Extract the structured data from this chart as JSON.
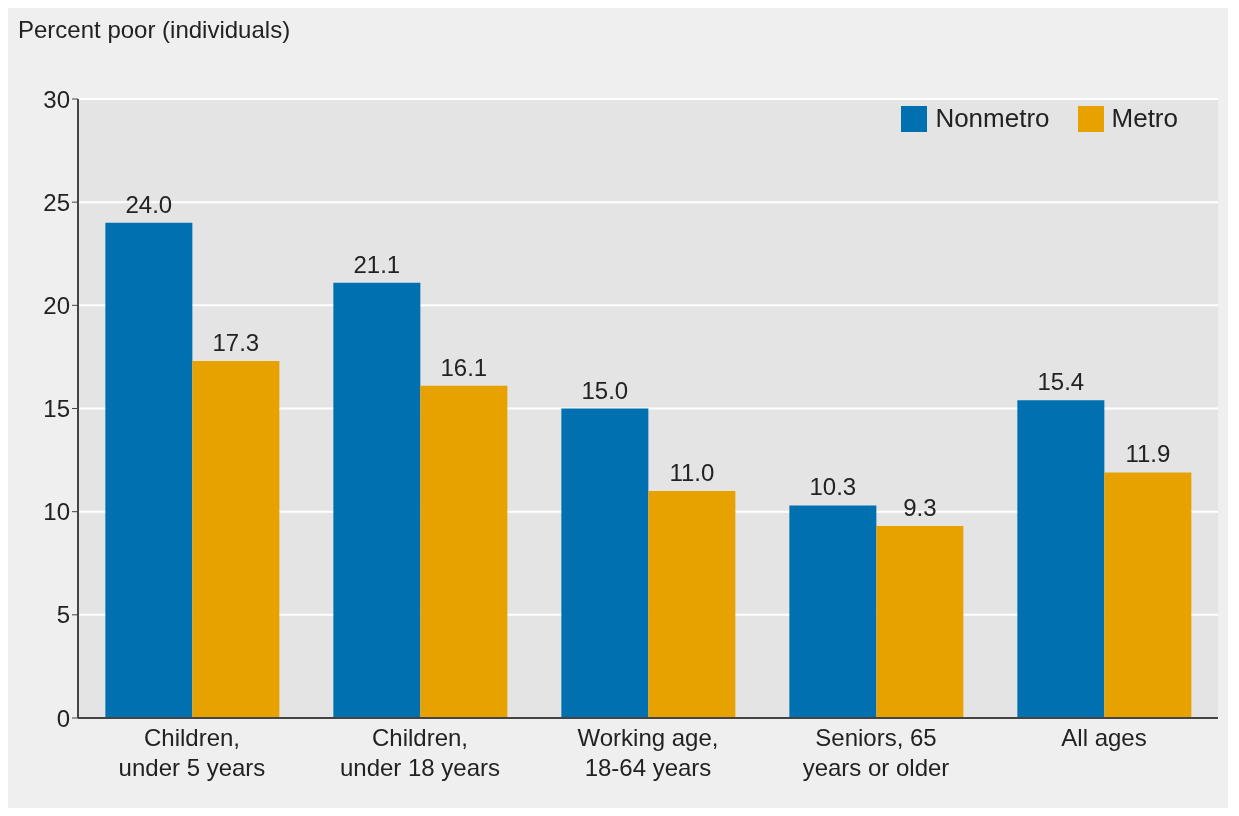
{
  "chart_data": {
    "type": "bar",
    "ylabel": "Percent poor (individuals)",
    "categories": [
      "Children, under 5 years",
      "Children, under 18 years",
      "Working age, 18-64 years",
      "Seniors, 65 years or older",
      "All ages"
    ],
    "series": [
      {
        "name": "Nonmetro",
        "color": "#0070b0",
        "values": [
          24.0,
          21.1,
          15.0,
          10.3,
          15.4
        ],
        "value_labels": [
          "24.0",
          "21.1",
          "15.0",
          "10.3",
          "15.4"
        ]
      },
      {
        "name": "Metro",
        "color": "#e8a200",
        "values": [
          17.3,
          16.1,
          11.0,
          9.3,
          11.9
        ],
        "value_labels": [
          "17.3",
          "16.1",
          "11.0",
          "9.3",
          "11.9"
        ]
      }
    ],
    "ylim": [
      0,
      30
    ],
    "yticks": [
      0,
      5,
      10,
      15,
      20,
      25,
      30
    ],
    "grid": "y",
    "legend": "top right"
  }
}
